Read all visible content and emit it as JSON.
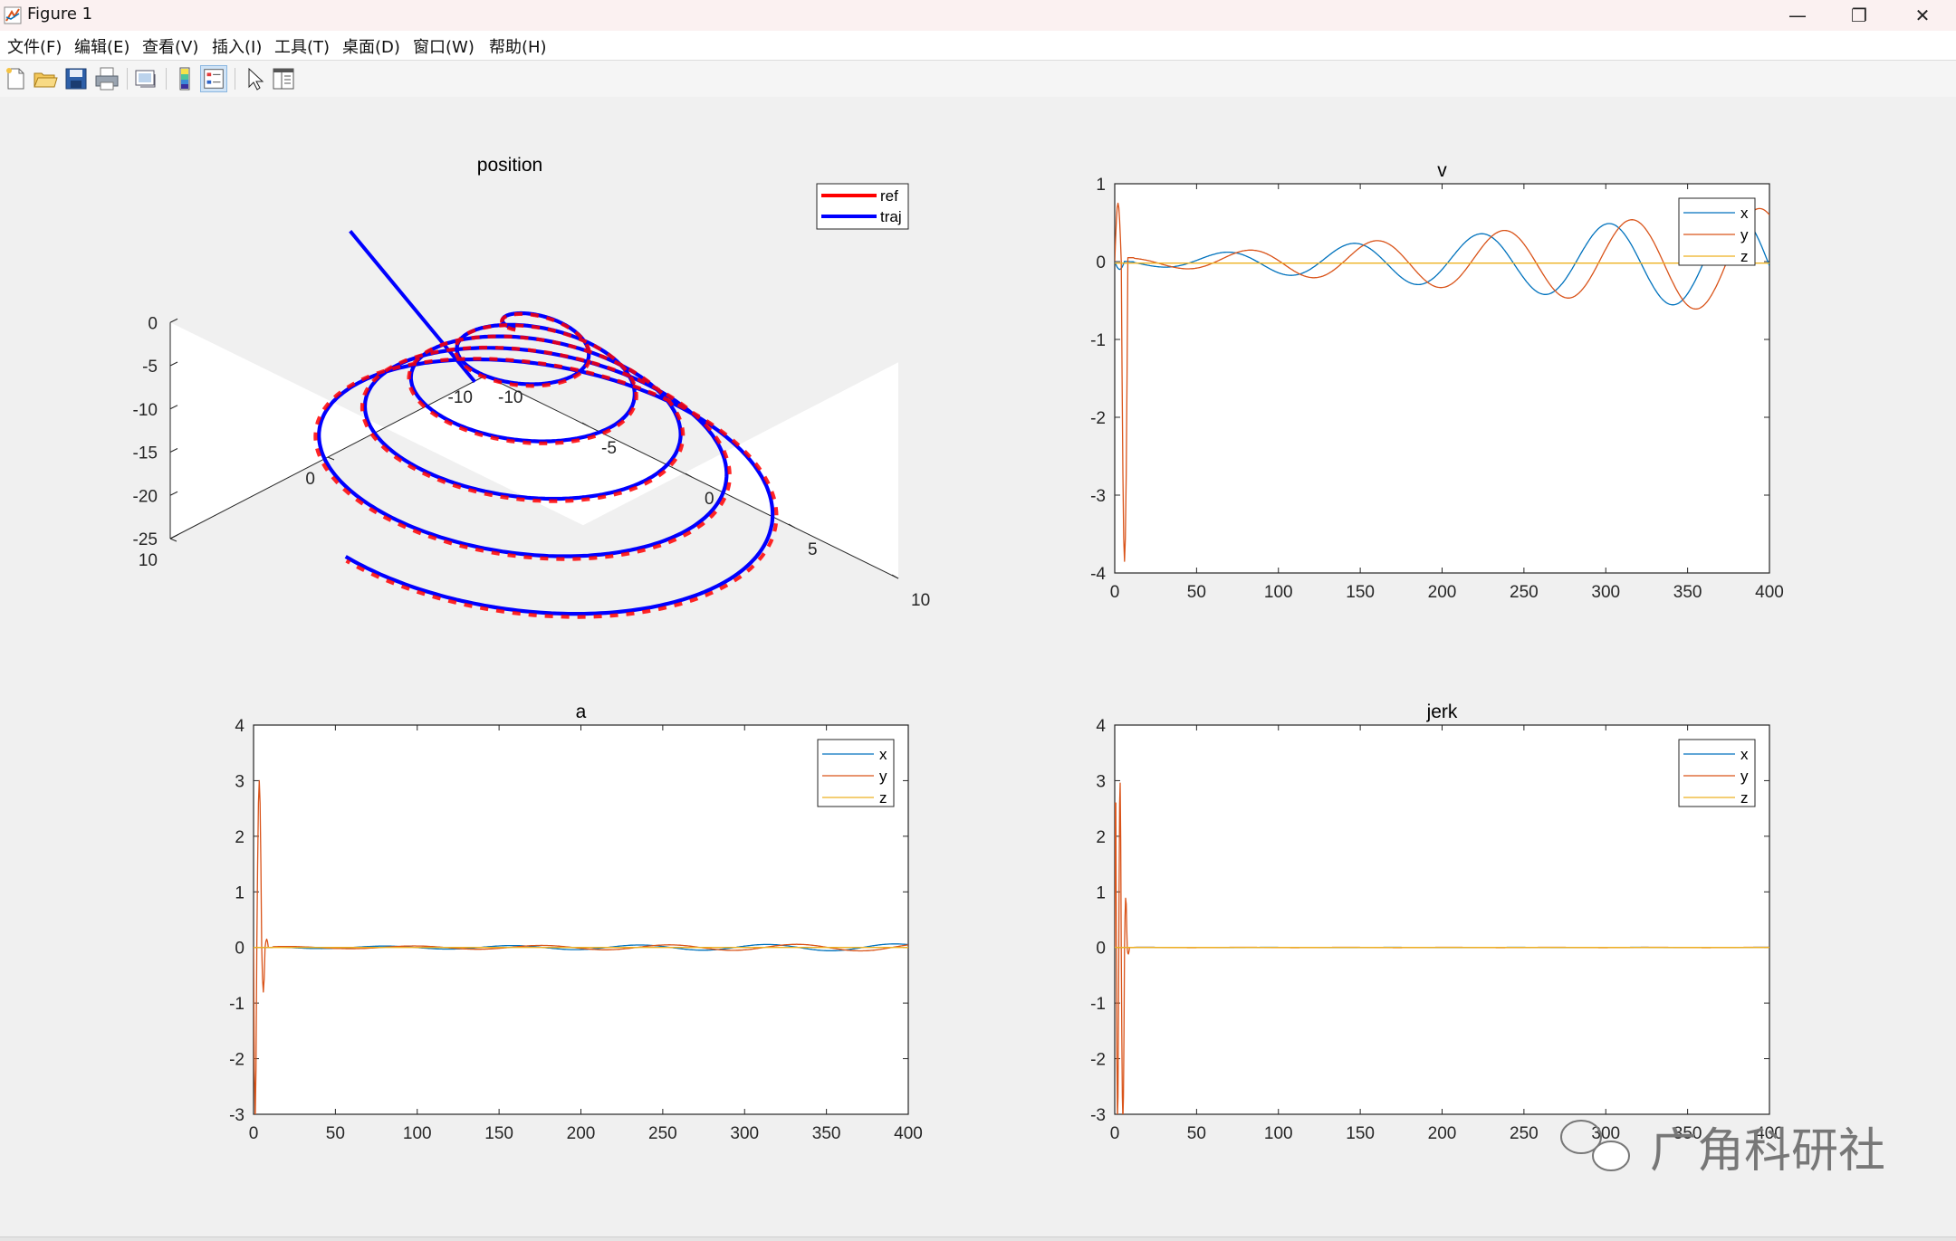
{
  "window": {
    "title": "Figure 1",
    "minimize": "—",
    "restore": "❐",
    "close": "✕"
  },
  "menu": [
    "文件(F)",
    "编辑(E)",
    "查看(V)",
    "插入(I)",
    "工具(T)",
    "桌面(D)",
    "窗口(W)",
    "帮助(H)"
  ],
  "toolbar": {
    "buttons": [
      "new-figure-icon",
      "open-file-icon",
      "save-icon",
      "print-icon",
      "link-plot-icon",
      "insert-colorbar-icon",
      "insert-legend-icon",
      "edit-plot-icon",
      "property-inspector-icon"
    ]
  },
  "watermark": {
    "text": "广角科研社"
  },
  "colors": {
    "x": "#0072BD",
    "y": "#D95319",
    "z": "#EDB120",
    "ref": "#ff0000",
    "traj": "#0000ff",
    "figure_bg": "#f0f0f0"
  },
  "chart_data": [
    {
      "type": "line",
      "title": "position",
      "projection": "3d",
      "series": [
        {
          "name": "ref",
          "color": "#ff0000",
          "description_values": "helix"
        },
        {
          "name": "traj",
          "color": "#0000ff"
        }
      ],
      "helix": {
        "z_start": 0,
        "z_end": -20,
        "r_start": 1,
        "r_end": 10,
        "turns": 5
      },
      "x_ticks": [
        "-10",
        "-5",
        "0",
        "5",
        "10"
      ],
      "y_ticks": [
        "-10",
        "0",
        "10"
      ],
      "z_ticks": [
        "0",
        "-5",
        "-10",
        "-15",
        "-20",
        "-25"
      ],
      "legend": "top-right"
    },
    {
      "type": "line",
      "title": "v",
      "xlim": [
        0,
        400
      ],
      "ylim": [
        -4,
        1
      ],
      "x_ticks": [
        "0",
        "50",
        "100",
        "150",
        "200",
        "250",
        "300",
        "350",
        "400"
      ],
      "y_ticks": [
        "1",
        "0",
        "-1",
        "-2",
        "-3",
        "-4"
      ],
      "series": [
        {
          "name": "x",
          "shape": "growing sine",
          "period": 78,
          "amp_start": 0.05,
          "amp_end": 0.65
        },
        {
          "name": "y",
          "shape": "growing sine with initial spike",
          "period": 78,
          "spike_min": -3.8,
          "spike_max": 0.75,
          "amp_start": 0.05,
          "amp_end": 0.7
        },
        {
          "name": "z",
          "shape": "flat",
          "value": 0
        }
      ],
      "legend": "top-right"
    },
    {
      "type": "line",
      "title": "a",
      "xlim": [
        0,
        400
      ],
      "ylim": [
        -3,
        4
      ],
      "x_ticks": [
        "0",
        "50",
        "100",
        "150",
        "200",
        "250",
        "300",
        "350",
        "400"
      ],
      "y_ticks": [
        "4",
        "3",
        "2",
        "1",
        "0",
        "-1",
        "-2",
        "-3"
      ],
      "series": [
        {
          "name": "x",
          "shape": "small oscillation",
          "amp": 0.06
        },
        {
          "name": "y",
          "shape": "initial spike then small oscillation",
          "spike_max": 3.0,
          "spike_min": -3.0
        },
        {
          "name": "z",
          "shape": "flat",
          "value": 0
        }
      ],
      "legend": "top-right"
    },
    {
      "type": "line",
      "title": "jerk",
      "xlim": [
        0,
        400
      ],
      "ylim": [
        -3,
        4
      ],
      "x_ticks": [
        "0",
        "50",
        "100",
        "150",
        "200",
        "250",
        "300",
        "350",
        "400"
      ],
      "y_ticks": [
        "4",
        "3",
        "2",
        "1",
        "0",
        "-1",
        "-2",
        "-3"
      ],
      "series": [
        {
          "name": "x",
          "shape": "near zero"
        },
        {
          "name": "y",
          "shape": "initial spikes then near zero",
          "spike_max": 3.0,
          "spike_min": -3.0
        },
        {
          "name": "z",
          "shape": "flat",
          "value": 0
        }
      ],
      "legend": "top-right"
    }
  ]
}
